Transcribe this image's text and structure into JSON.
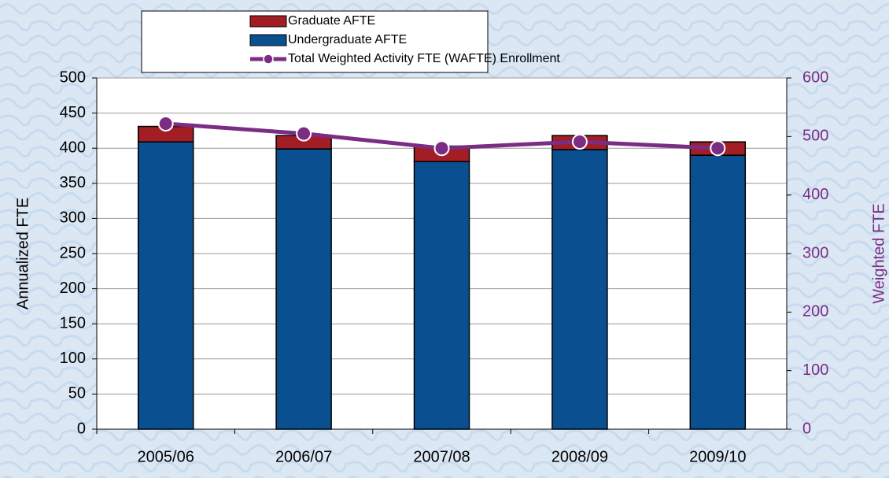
{
  "chart_data": {
    "type": "bar",
    "categories": [
      "2005/06",
      "2006/07",
      "2007/08",
      "2008/09",
      "2009/10"
    ],
    "series": [
      {
        "name": "Undergraduate AFTE",
        "color": "#0a4f8f",
        "values": [
          409,
          399,
          381,
          398,
          390
        ]
      },
      {
        "name": "Graduate AFTE",
        "color": "#a31d24",
        "values": [
          22,
          19,
          22,
          20,
          19
        ]
      },
      {
        "name": "Total Weighted Activity FTE (WAFTE) Enrollment",
        "color": "#7b2c83",
        "type": "line",
        "axis": "y2",
        "values": [
          522,
          505,
          480,
          491,
          480
        ]
      }
    ],
    "ylabel": "Annualized FTE",
    "y2label": "Weighted FTE",
    "ylim": [
      0,
      500
    ],
    "yticks": [
      0,
      50,
      100,
      150,
      200,
      250,
      300,
      350,
      400,
      450,
      500
    ],
    "y2lim": [
      0,
      600
    ],
    "y2ticks": [
      0,
      100,
      200,
      300,
      400,
      500,
      600
    ],
    "grid": true,
    "stacked": true,
    "legend": "top"
  }
}
